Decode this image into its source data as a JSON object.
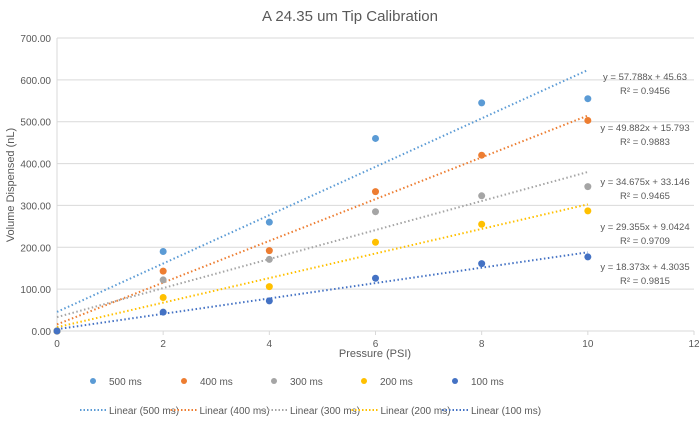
{
  "chart_data": {
    "type": "scatter",
    "title": "A 24.35 um Tip Calibration",
    "xlabel": "Pressure (PSI)",
    "ylabel": "Volume Dispensed (nL)",
    "xlim": [
      0,
      12
    ],
    "ylim": [
      0,
      700
    ],
    "x_ticks": [
      "0",
      "2",
      "4",
      "6",
      "8",
      "10",
      "12"
    ],
    "y_ticks": [
      "0.00",
      "100.00",
      "200.00",
      "300.00",
      "400.00",
      "500.00",
      "600.00",
      "700.00"
    ],
    "grid": "horizontal",
    "legend_position": "bottom",
    "x": [
      0,
      2,
      4,
      6,
      8,
      10
    ],
    "series": [
      {
        "name": "500 ms",
        "trend_name": "Linear (500 ms)",
        "color": "#5B9BD5",
        "values": [
          0,
          190,
          260,
          460,
          545,
          555
        ],
        "slope": 57.788,
        "intercept": 45.63,
        "equation": "y = 57.788x + 45.63",
        "r2": "R² = 0.9456"
      },
      {
        "name": "400 ms",
        "trend_name": "Linear (400 ms)",
        "color": "#ED7D31",
        "values": [
          0,
          143,
          192,
          333,
          420,
          503
        ],
        "slope": 49.882,
        "intercept": 15.793,
        "equation": "y = 49.882x + 15.793",
        "r2": "R² = 0.9883"
      },
      {
        "name": "300 ms",
        "trend_name": "Linear (300 ms)",
        "color": "#A5A5A5",
        "values": [
          0,
          122,
          171,
          285,
          323,
          345
        ],
        "slope": 34.675,
        "intercept": 33.146,
        "equation": "y = 34.675x + 33.146",
        "r2": "R² = 0.9465"
      },
      {
        "name": "200 ms",
        "trend_name": "Linear (200 ms)",
        "color": "#FFC000",
        "values": [
          0,
          80,
          106,
          212,
          255,
          287
        ],
        "slope": 29.355,
        "intercept": 9.0424,
        "equation": "y = 29.355x + 9.0424",
        "r2": "R² = 0.9709"
      },
      {
        "name": "100 ms",
        "trend_name": "Linear (100 ms)",
        "color": "#4472C4",
        "values": [
          0,
          45,
          72,
          126,
          161,
          177
        ],
        "slope": 18.373,
        "intercept": 4.3035,
        "equation": "y = 18.373x + 4.3035",
        "r2": "R² = 0.9815"
      }
    ]
  }
}
